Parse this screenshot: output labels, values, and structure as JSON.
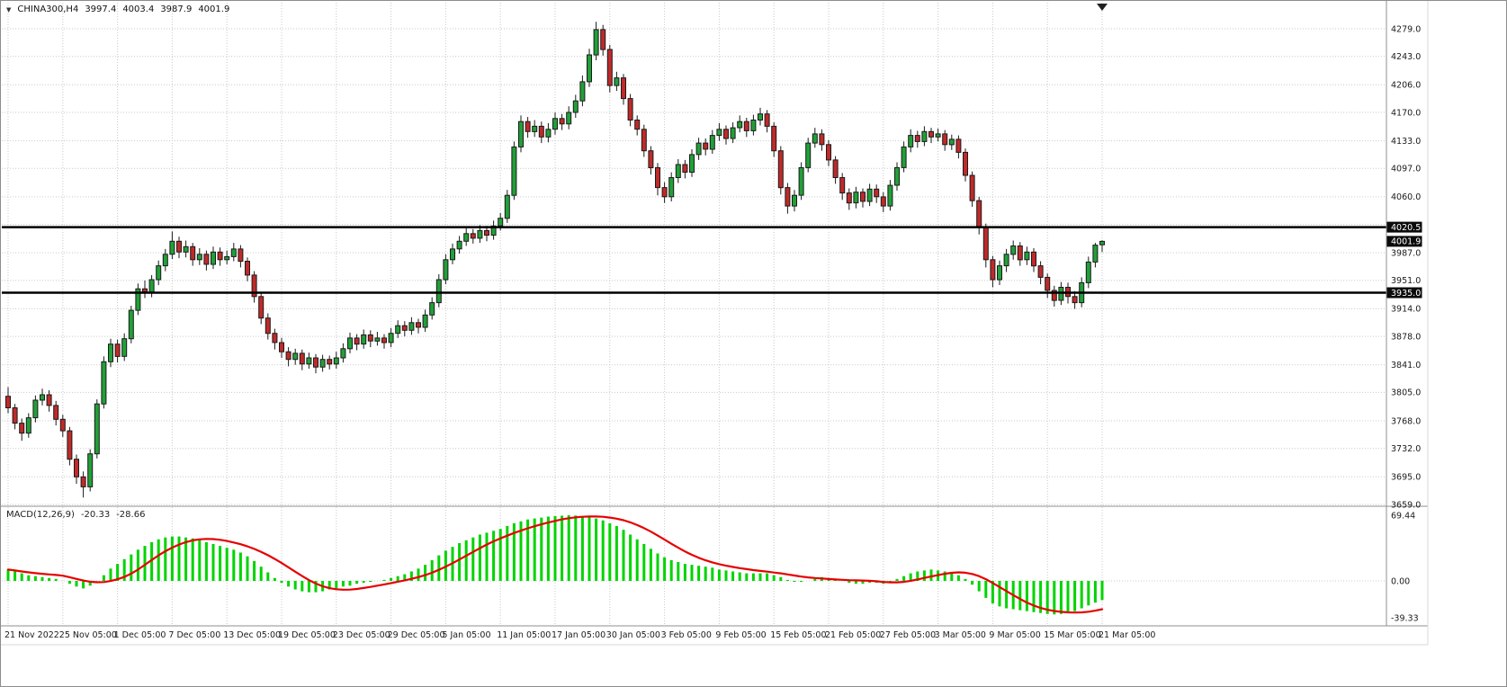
{
  "window": {
    "bg": "#ffffff",
    "border": "#8c8c8c"
  },
  "header": {
    "arrow_icon": "▼",
    "symbol_timeframe": "CHINA300,H4",
    "open": "3997.4",
    "high": "4003.4",
    "low": "3987.9",
    "close": "4001.9"
  },
  "macd_panel": {
    "indicator_label": "MACD(12,26,9)",
    "main_value": "-20.33",
    "signal_value": "-28.66"
  },
  "chart_data": {
    "type": "candlestick",
    "symbol": "CHINA300",
    "timeframe": "H4",
    "title": "CHINA300,H4 3997.4 4003.4 3987.9 4001.9",
    "price_range_labeled": [
      3659.0,
      4279.0
    ],
    "grid": true,
    "colors": {
      "up": "#21a038",
      "down": "#c02a2a",
      "outline": "#1a1a1a",
      "hist": "#00d400",
      "signal": "#e60000",
      "grid": "#c9c9c9",
      "hline": "#000000",
      "tag_bg": "#0b0b0b",
      "tag_fg": "#ffffff",
      "text": "#1a1a1a",
      "separator": "#8f8f8f",
      "frame": "#d9d9d9",
      "marker": "#222222"
    },
    "price_axis": {
      "grid": [
        {
          "p": 4279.0,
          "label": "4279.0"
        },
        {
          "p": 4243.0,
          "label": "4243.0"
        },
        {
          "p": 4206.0,
          "label": "4206.0"
        },
        {
          "p": 4170.0,
          "label": "4170.0"
        },
        {
          "p": 4133.0,
          "label": "4133.0"
        },
        {
          "p": 4097.0,
          "label": "4097.0"
        },
        {
          "p": 4060.0,
          "label": "4060.0"
        },
        {
          "p": 4024.0,
          "label": ""
        },
        {
          "p": 3987.0,
          "label": "3987.0"
        },
        {
          "p": 3951.0,
          "label": "3951.0"
        },
        {
          "p": 3914.0,
          "label": "3914.0"
        },
        {
          "p": 3878.0,
          "label": "3878.0"
        },
        {
          "p": 3841.0,
          "label": "3841.0"
        },
        {
          "p": 3805.0,
          "label": "3805.0"
        },
        {
          "p": 3768.0,
          "label": "3768.0"
        },
        {
          "p": 3732.0,
          "label": "3732.0"
        },
        {
          "p": 3695.0,
          "label": "3695.0"
        },
        {
          "p": 3659.0,
          "label": "3659.0"
        }
      ],
      "tags": [
        {
          "text": "4020.5",
          "price": 4020.5
        },
        {
          "text": "4001.9",
          "price": 4001.9
        },
        {
          "text": "3935.0",
          "price": 3935.0
        }
      ]
    },
    "hlines": [
      {
        "price": 4020.5
      },
      {
        "price": 3935.0
      }
    ],
    "time_axis": {
      "labels": [
        {
          "text": "21 Nov 2022",
          "index": 0
        },
        {
          "text": "25 Nov 05:00",
          "index": 8
        },
        {
          "text": "1 Dec 05:00",
          "index": 16
        },
        {
          "text": "7 Dec 05:00",
          "index": 24
        },
        {
          "text": "13 Dec 05:00",
          "index": 32
        },
        {
          "text": "19 Dec 05:00",
          "index": 40
        },
        {
          "text": "23 Dec 05:00",
          "index": 48
        },
        {
          "text": "29 Dec 05:00",
          "index": 56
        },
        {
          "text": "5 Jan 05:00",
          "index": 64
        },
        {
          "text": "11 Jan 05:00",
          "index": 72
        },
        {
          "text": "17 Jan 05:00",
          "index": 80
        },
        {
          "text": "30 Jan 05:00",
          "index": 88
        },
        {
          "text": "3 Feb 05:00",
          "index": 96
        },
        {
          "text": "9 Feb 05:00",
          "index": 104
        },
        {
          "text": "15 Feb 05:00",
          "index": 112
        },
        {
          "text": "21 Feb 05:00",
          "index": 120
        },
        {
          "text": "27 Feb 05:00",
          "index": 128
        },
        {
          "text": "3 Mar 05:00",
          "index": 136
        },
        {
          "text": "9 Mar 05:00",
          "index": 144
        },
        {
          "text": "15 Mar 05:00",
          "index": 152
        },
        {
          "text": "21 Mar 05:00",
          "index": 160
        }
      ]
    },
    "candles": [
      [
        3800,
        3812,
        3778,
        3785
      ],
      [
        3785,
        3790,
        3757,
        3765
      ],
      [
        3765,
        3771,
        3742,
        3752
      ],
      [
        3752,
        3778,
        3746,
        3772
      ],
      [
        3772,
        3801,
        3766,
        3795
      ],
      [
        3795,
        3810,
        3788,
        3802
      ],
      [
        3802,
        3808,
        3780,
        3788
      ],
      [
        3788,
        3794,
        3762,
        3770
      ],
      [
        3770,
        3776,
        3747,
        3755
      ],
      [
        3755,
        3760,
        3710,
        3718
      ],
      [
        3718,
        3724,
        3686,
        3695
      ],
      [
        3695,
        3702,
        3668,
        3682
      ],
      [
        3682,
        3731,
        3676,
        3725
      ],
      [
        3725,
        3796,
        3719,
        3790
      ],
      [
        3790,
        3852,
        3784,
        3845
      ],
      [
        3845,
        3875,
        3838,
        3868
      ],
      [
        3868,
        3874,
        3844,
        3852
      ],
      [
        3852,
        3882,
        3846,
        3875
      ],
      [
        3875,
        3918,
        3869,
        3912
      ],
      [
        3912,
        3947,
        3906,
        3940
      ],
      [
        3940,
        3951,
        3928,
        3936
      ],
      [
        3936,
        3958,
        3929,
        3952
      ],
      [
        3952,
        3977,
        3945,
        3970
      ],
      [
        3970,
        3992,
        3963,
        3985
      ],
      [
        3985,
        4015,
        3979,
        4002
      ],
      [
        4002,
        4008,
        3980,
        3988
      ],
      [
        3988,
        4003,
        3981,
        3995
      ],
      [
        3995,
        4000,
        3970,
        3978
      ],
      [
        3978,
        3993,
        3971,
        3985
      ],
      [
        3985,
        3990,
        3964,
        3972
      ],
      [
        3972,
        3995,
        3966,
        3988
      ],
      [
        3988,
        3994,
        3970,
        3978
      ],
      [
        3978,
        3990,
        3972,
        3982
      ],
      [
        3982,
        4000,
        3976,
        3992
      ],
      [
        3992,
        3997,
        3968,
        3976
      ],
      [
        3976,
        3981,
        3950,
        3958
      ],
      [
        3958,
        3963,
        3922,
        3930
      ],
      [
        3930,
        3936,
        3894,
        3902
      ],
      [
        3902,
        3908,
        3874,
        3882
      ],
      [
        3882,
        3888,
        3861,
        3870
      ],
      [
        3870,
        3876,
        3850,
        3858
      ],
      [
        3858,
        3864,
        3839,
        3848
      ],
      [
        3848,
        3862,
        3841,
        3856
      ],
      [
        3856,
        3861,
        3834,
        3842
      ],
      [
        3842,
        3857,
        3836,
        3850
      ],
      [
        3850,
        3855,
        3830,
        3838
      ],
      [
        3838,
        3854,
        3832,
        3848
      ],
      [
        3848,
        3853,
        3835,
        3842
      ],
      [
        3842,
        3858,
        3836,
        3850
      ],
      [
        3850,
        3869,
        3844,
        3862
      ],
      [
        3862,
        3883,
        3856,
        3876
      ],
      [
        3876,
        3881,
        3860,
        3868
      ],
      [
        3868,
        3887,
        3862,
        3880
      ],
      [
        3880,
        3886,
        3864,
        3872
      ],
      [
        3872,
        3884,
        3866,
        3876
      ],
      [
        3876,
        3881,
        3862,
        3870
      ],
      [
        3870,
        3889,
        3864,
        3882
      ],
      [
        3882,
        3899,
        3876,
        3892
      ],
      [
        3892,
        3898,
        3878,
        3886
      ],
      [
        3886,
        3903,
        3880,
        3896
      ],
      [
        3896,
        3901,
        3882,
        3890
      ],
      [
        3890,
        3913,
        3884,
        3906
      ],
      [
        3906,
        3929,
        3900,
        3922
      ],
      [
        3922,
        3959,
        3916,
        3952
      ],
      [
        3952,
        3985,
        3946,
        3978
      ],
      [
        3978,
        3999,
        3972,
        3992
      ],
      [
        3992,
        4009,
        3986,
        4002
      ],
      [
        4002,
        4019,
        3996,
        4012
      ],
      [
        4012,
        4018,
        3999,
        4006
      ],
      [
        4006,
        4023,
        4000,
        4016
      ],
      [
        4016,
        4022,
        4002,
        4010
      ],
      [
        4010,
        4029,
        4004,
        4022
      ],
      [
        4022,
        4039,
        4016,
        4032
      ],
      [
        4032,
        4069,
        4026,
        4062
      ],
      [
        4062,
        4132,
        4056,
        4125
      ],
      [
        4125,
        4166,
        4118,
        4158
      ],
      [
        4158,
        4164,
        4137,
        4145
      ],
      [
        4145,
        4160,
        4138,
        4152
      ],
      [
        4152,
        4158,
        4130,
        4138
      ],
      [
        4138,
        4156,
        4131,
        4148
      ],
      [
        4148,
        4170,
        4141,
        4162
      ],
      [
        4162,
        4168,
        4147,
        4155
      ],
      [
        4155,
        4178,
        4148,
        4170
      ],
      [
        4170,
        4193,
        4163,
        4185
      ],
      [
        4185,
        4218,
        4178,
        4210
      ],
      [
        4210,
        4253,
        4203,
        4245
      ],
      [
        4245,
        4288,
        4238,
        4278
      ],
      [
        4278,
        4284,
        4244,
        4252
      ],
      [
        4252,
        4258,
        4196,
        4205
      ],
      [
        4205,
        4223,
        4198,
        4215
      ],
      [
        4215,
        4220,
        4180,
        4188
      ],
      [
        4188,
        4194,
        4152,
        4160
      ],
      [
        4160,
        4166,
        4140,
        4148
      ],
      [
        4148,
        4154,
        4112,
        4120
      ],
      [
        4120,
        4126,
        4089,
        4098
      ],
      [
        4098,
        4104,
        4062,
        4072
      ],
      [
        4072,
        4079,
        4052,
        4060
      ],
      [
        4060,
        4092,
        4054,
        4085
      ],
      [
        4085,
        4109,
        4078,
        4102
      ],
      [
        4102,
        4108,
        4084,
        4092
      ],
      [
        4092,
        4122,
        4086,
        4115
      ],
      [
        4115,
        4137,
        4108,
        4130
      ],
      [
        4130,
        4136,
        4114,
        4122
      ],
      [
        4122,
        4147,
        4116,
        4140
      ],
      [
        4140,
        4156,
        4133,
        4148
      ],
      [
        4148,
        4153,
        4128,
        4136
      ],
      [
        4136,
        4157,
        4130,
        4150
      ],
      [
        4150,
        4166,
        4144,
        4158
      ],
      [
        4158,
        4163,
        4138,
        4146
      ],
      [
        4146,
        4167,
        4140,
        4160
      ],
      [
        4160,
        4176,
        4153,
        4168
      ],
      [
        4168,
        4173,
        4144,
        4152
      ],
      [
        4152,
        4157,
        4112,
        4120
      ],
      [
        4120,
        4126,
        4063,
        4072
      ],
      [
        4072,
        4078,
        4038,
        4048
      ],
      [
        4048,
        4069,
        4041,
        4062
      ],
      [
        4062,
        4105,
        4056,
        4098
      ],
      [
        4098,
        4137,
        4092,
        4130
      ],
      [
        4130,
        4150,
        4124,
        4142
      ],
      [
        4142,
        4148,
        4120,
        4128
      ],
      [
        4128,
        4134,
        4100,
        4108
      ],
      [
        4108,
        4113,
        4077,
        4085
      ],
      [
        4085,
        4091,
        4056,
        4065
      ],
      [
        4065,
        4071,
        4043,
        4052
      ],
      [
        4052,
        4073,
        4045,
        4066
      ],
      [
        4066,
        4071,
        4046,
        4054
      ],
      [
        4054,
        4077,
        4048,
        4070
      ],
      [
        4070,
        4076,
        4052,
        4060
      ],
      [
        4060,
        4066,
        4040,
        4048
      ],
      [
        4048,
        4082,
        4042,
        4075
      ],
      [
        4075,
        4105,
        4068,
        4098
      ],
      [
        4098,
        4132,
        4092,
        4125
      ],
      [
        4125,
        4148,
        4118,
        4140
      ],
      [
        4140,
        4146,
        4124,
        4132
      ],
      [
        4132,
        4152,
        4126,
        4145
      ],
      [
        4145,
        4150,
        4130,
        4138
      ],
      [
        4138,
        4149,
        4132,
        4142
      ],
      [
        4142,
        4147,
        4120,
        4128
      ],
      [
        4128,
        4141,
        4121,
        4135
      ],
      [
        4135,
        4140,
        4110,
        4118
      ],
      [
        4118,
        4123,
        4080,
        4088
      ],
      [
        4088,
        4093,
        4047,
        4055
      ],
      [
        4055,
        4060,
        4011,
        4020
      ],
      [
        4020,
        4025,
        3968,
        3978
      ],
      [
        3978,
        3983,
        3942,
        3952
      ],
      [
        3952,
        3977,
        3945,
        3970
      ],
      [
        3970,
        3992,
        3962,
        3985
      ],
      [
        3985,
        4003,
        3978,
        3996
      ],
      [
        3996,
        4001,
        3970,
        3978
      ],
      [
        3978,
        3995,
        3971,
        3988
      ],
      [
        3988,
        3993,
        3962,
        3970
      ],
      [
        3970,
        3976,
        3946,
        3955
      ],
      [
        3955,
        3960,
        3928,
        3938
      ],
      [
        3938,
        3944,
        3917,
        3925
      ],
      [
        3925,
        3949,
        3919,
        3942
      ],
      [
        3942,
        3948,
        3921,
        3930
      ],
      [
        3930,
        3937,
        3914,
        3922
      ],
      [
        3922,
        3955,
        3916,
        3948
      ],
      [
        3948,
        3982,
        3941,
        3975
      ],
      [
        3975,
        4000,
        3968,
        3997
      ],
      [
        3997.4,
        4003.4,
        3987.9,
        4001.9
      ]
    ],
    "macd": {
      "params": "12,26,9",
      "main_value": -20.33,
      "signal_value": -28.66,
      "range_labeled": [
        -39.33,
        69.44
      ],
      "axis_labels": [
        {
          "text": "69.44",
          "value": 69.44
        },
        {
          "text": "0.00",
          "value": 0
        },
        {
          "text": "-39.33",
          "value": -39.33
        }
      ],
      "hist": [
        12,
        10,
        8,
        6,
        5,
        4,
        3,
        2,
        0,
        -3,
        -6,
        -8,
        -5,
        0,
        6,
        13,
        18,
        23,
        28,
        33,
        37,
        41,
        44,
        46,
        47,
        47,
        46,
        45,
        43,
        41,
        39,
        37,
        35,
        33,
        30,
        26,
        21,
        15,
        9,
        3,
        -2,
        -6,
        -9,
        -11,
        -12,
        -12,
        -11,
        -9,
        -8,
        -6,
        -5,
        -3,
        -2,
        -1,
        0,
        1,
        3,
        5,
        7,
        10,
        13,
        17,
        22,
        27,
        32,
        36,
        40,
        43,
        46,
        49,
        51,
        53,
        55,
        58,
        61,
        63,
        65,
        66,
        67,
        68,
        68.5,
        69,
        69.44,
        69.2,
        68.5,
        67.5,
        66,
        64,
        61,
        58,
        54,
        49,
        44,
        39,
        34,
        29,
        25,
        22,
        20,
        18,
        17,
        16,
        15,
        14,
        12,
        11,
        10,
        9,
        8,
        8,
        8,
        8,
        6,
        4,
        1,
        -1,
        -1,
        0,
        2,
        4,
        3,
        2,
        0,
        -2,
        -3,
        -3,
        -2,
        -2,
        -3,
        -1,
        2,
        5,
        8,
        10,
        11,
        12,
        11,
        10,
        8,
        6,
        2,
        -4,
        -11,
        -18,
        -24,
        -27,
        -29,
        -30,
        -31,
        -32,
        -33,
        -34,
        -35,
        -35.5,
        -35,
        -34,
        -32,
        -29,
        -26,
        -23,
        -20.33
      ]
    }
  }
}
